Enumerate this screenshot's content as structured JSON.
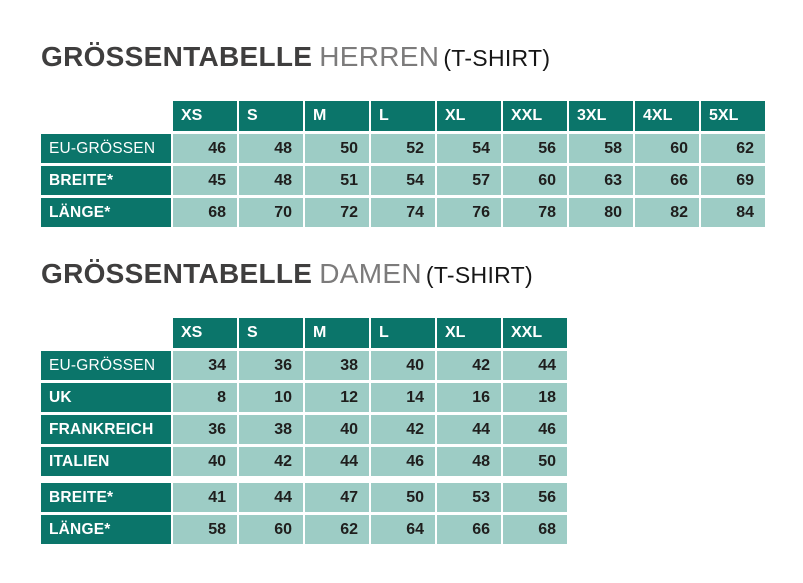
{
  "colors": {
    "teal_dark": "#0b756a",
    "cell_light": "#9dccc5",
    "value_text": "#1f1e1d",
    "title_main": "#3f3e3e",
    "title_sub": "#7c7b7b",
    "title_suffix": "#161616",
    "page_background": "#ffffff"
  },
  "tables": [
    {
      "title_main": "GRÖSSENTABELLE",
      "title_sub": "HERREN",
      "title_suffix": "(T-SHIRT)",
      "columns": [
        "XS",
        "S",
        "M",
        "L",
        "XL",
        "XXL",
        "3XL",
        "4XL",
        "5XL"
      ],
      "rows": [
        {
          "label": "EU-GRÖSSEN",
          "bold": false,
          "gap_before": false,
          "values": [
            46,
            48,
            50,
            52,
            54,
            56,
            58,
            60,
            62
          ]
        },
        {
          "label": "BREITE*",
          "bold": true,
          "gap_before": false,
          "values": [
            45,
            48,
            51,
            54,
            57,
            60,
            63,
            66,
            69
          ]
        },
        {
          "label": "LÄNGE*",
          "bold": true,
          "gap_before": false,
          "values": [
            68,
            70,
            72,
            74,
            76,
            78,
            80,
            82,
            84
          ]
        }
      ]
    },
    {
      "title_main": "GRÖSSENTABELLE",
      "title_sub": "DAMEN",
      "title_suffix": "(T-SHIRT)",
      "columns": [
        "XS",
        "S",
        "M",
        "L",
        "XL",
        "XXL"
      ],
      "rows": [
        {
          "label": "EU-GRÖSSEN",
          "bold": false,
          "gap_before": false,
          "values": [
            34,
            36,
            38,
            40,
            42,
            44
          ]
        },
        {
          "label": "UK",
          "bold": true,
          "gap_before": false,
          "values": [
            8,
            10,
            12,
            14,
            16,
            18
          ]
        },
        {
          "label": "FRANKREICH",
          "bold": true,
          "gap_before": false,
          "values": [
            36,
            38,
            40,
            42,
            44,
            46
          ]
        },
        {
          "label": "ITALIEN",
          "bold": true,
          "gap_before": false,
          "values": [
            40,
            42,
            44,
            46,
            48,
            50
          ]
        },
        {
          "label": "BREITE*",
          "bold": true,
          "gap_before": true,
          "values": [
            41,
            44,
            47,
            50,
            53,
            56
          ]
        },
        {
          "label": "LÄNGE*",
          "bold": true,
          "gap_before": false,
          "values": [
            58,
            60,
            62,
            64,
            66,
            68
          ]
        }
      ]
    }
  ]
}
